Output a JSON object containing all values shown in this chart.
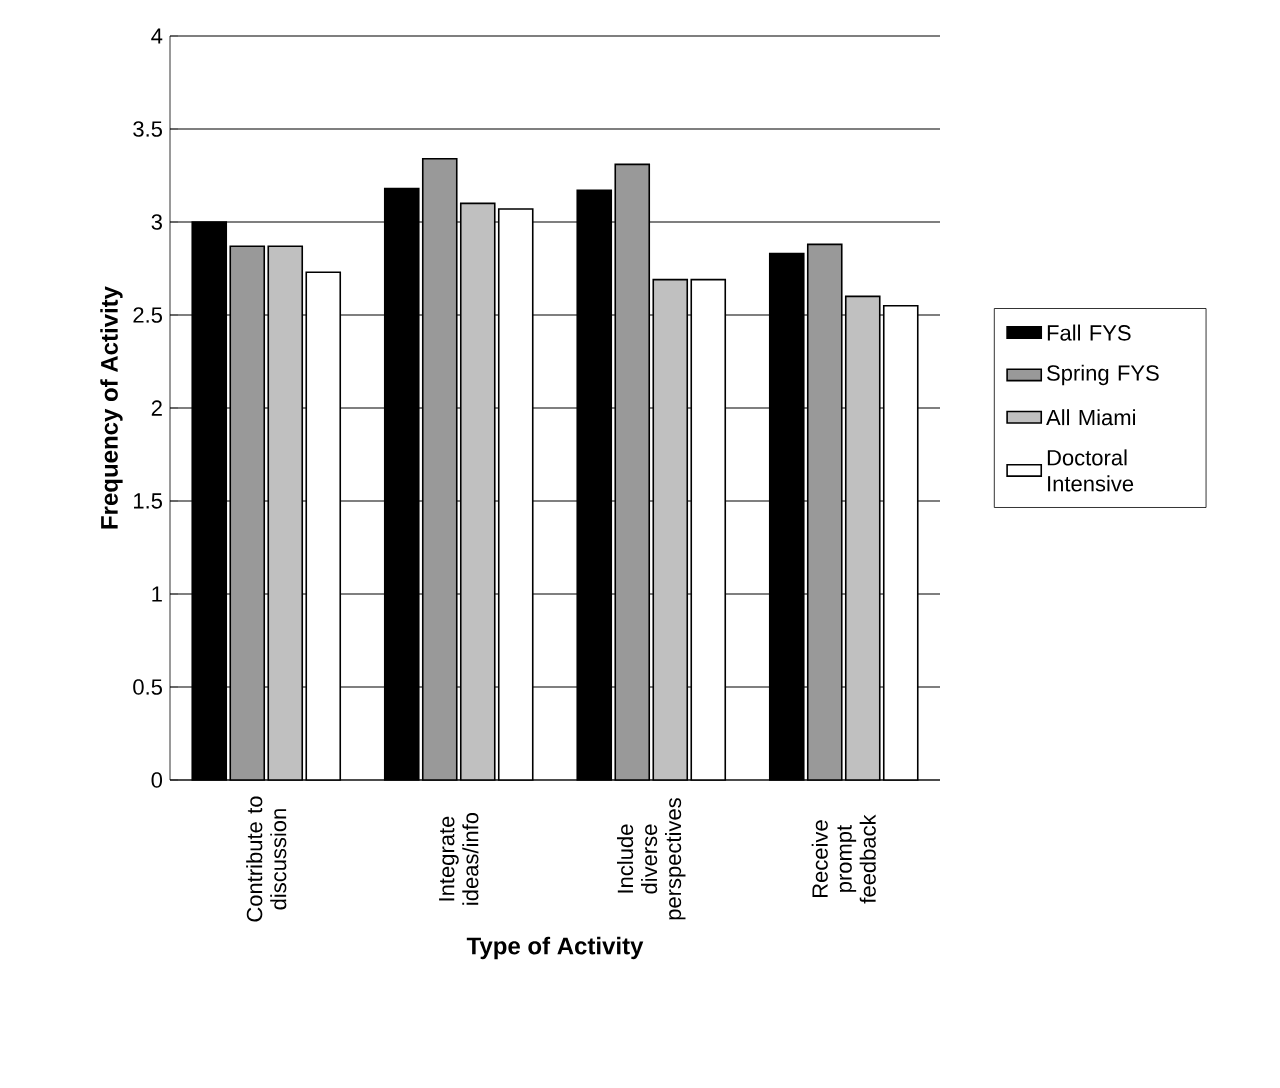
{
  "chart_data": {
    "type": "bar",
    "xlabel": "Type of Activity",
    "ylabel": "Frequency of Activity",
    "categories": [
      "Contribute to discussion",
      "Integrate ideas/info",
      "Include diverse perspectives",
      "Receive prompt feedback"
    ],
    "series": [
      {
        "name": "Fall FYS",
        "color": "#000000",
        "values": [
          3.0,
          3.18,
          3.17,
          2.83
        ]
      },
      {
        "name": "Spring FYS",
        "color": "#999999",
        "values": [
          2.87,
          3.34,
          3.31,
          2.88
        ]
      },
      {
        "name": "All Miami",
        "color": "#c0c0c0",
        "values": [
          2.87,
          3.1,
          2.69,
          2.6
        ]
      },
      {
        "name": "Doctoral Intensive",
        "color": "#ffffff",
        "values": [
          2.73,
          3.07,
          2.69,
          2.55
        ]
      }
    ],
    "ylim": [
      0,
      4
    ],
    "yticks": [
      0,
      0.5,
      1,
      1.5,
      2,
      2.5,
      3,
      3.5,
      4
    ],
    "grid": "y",
    "legend": "right"
  }
}
